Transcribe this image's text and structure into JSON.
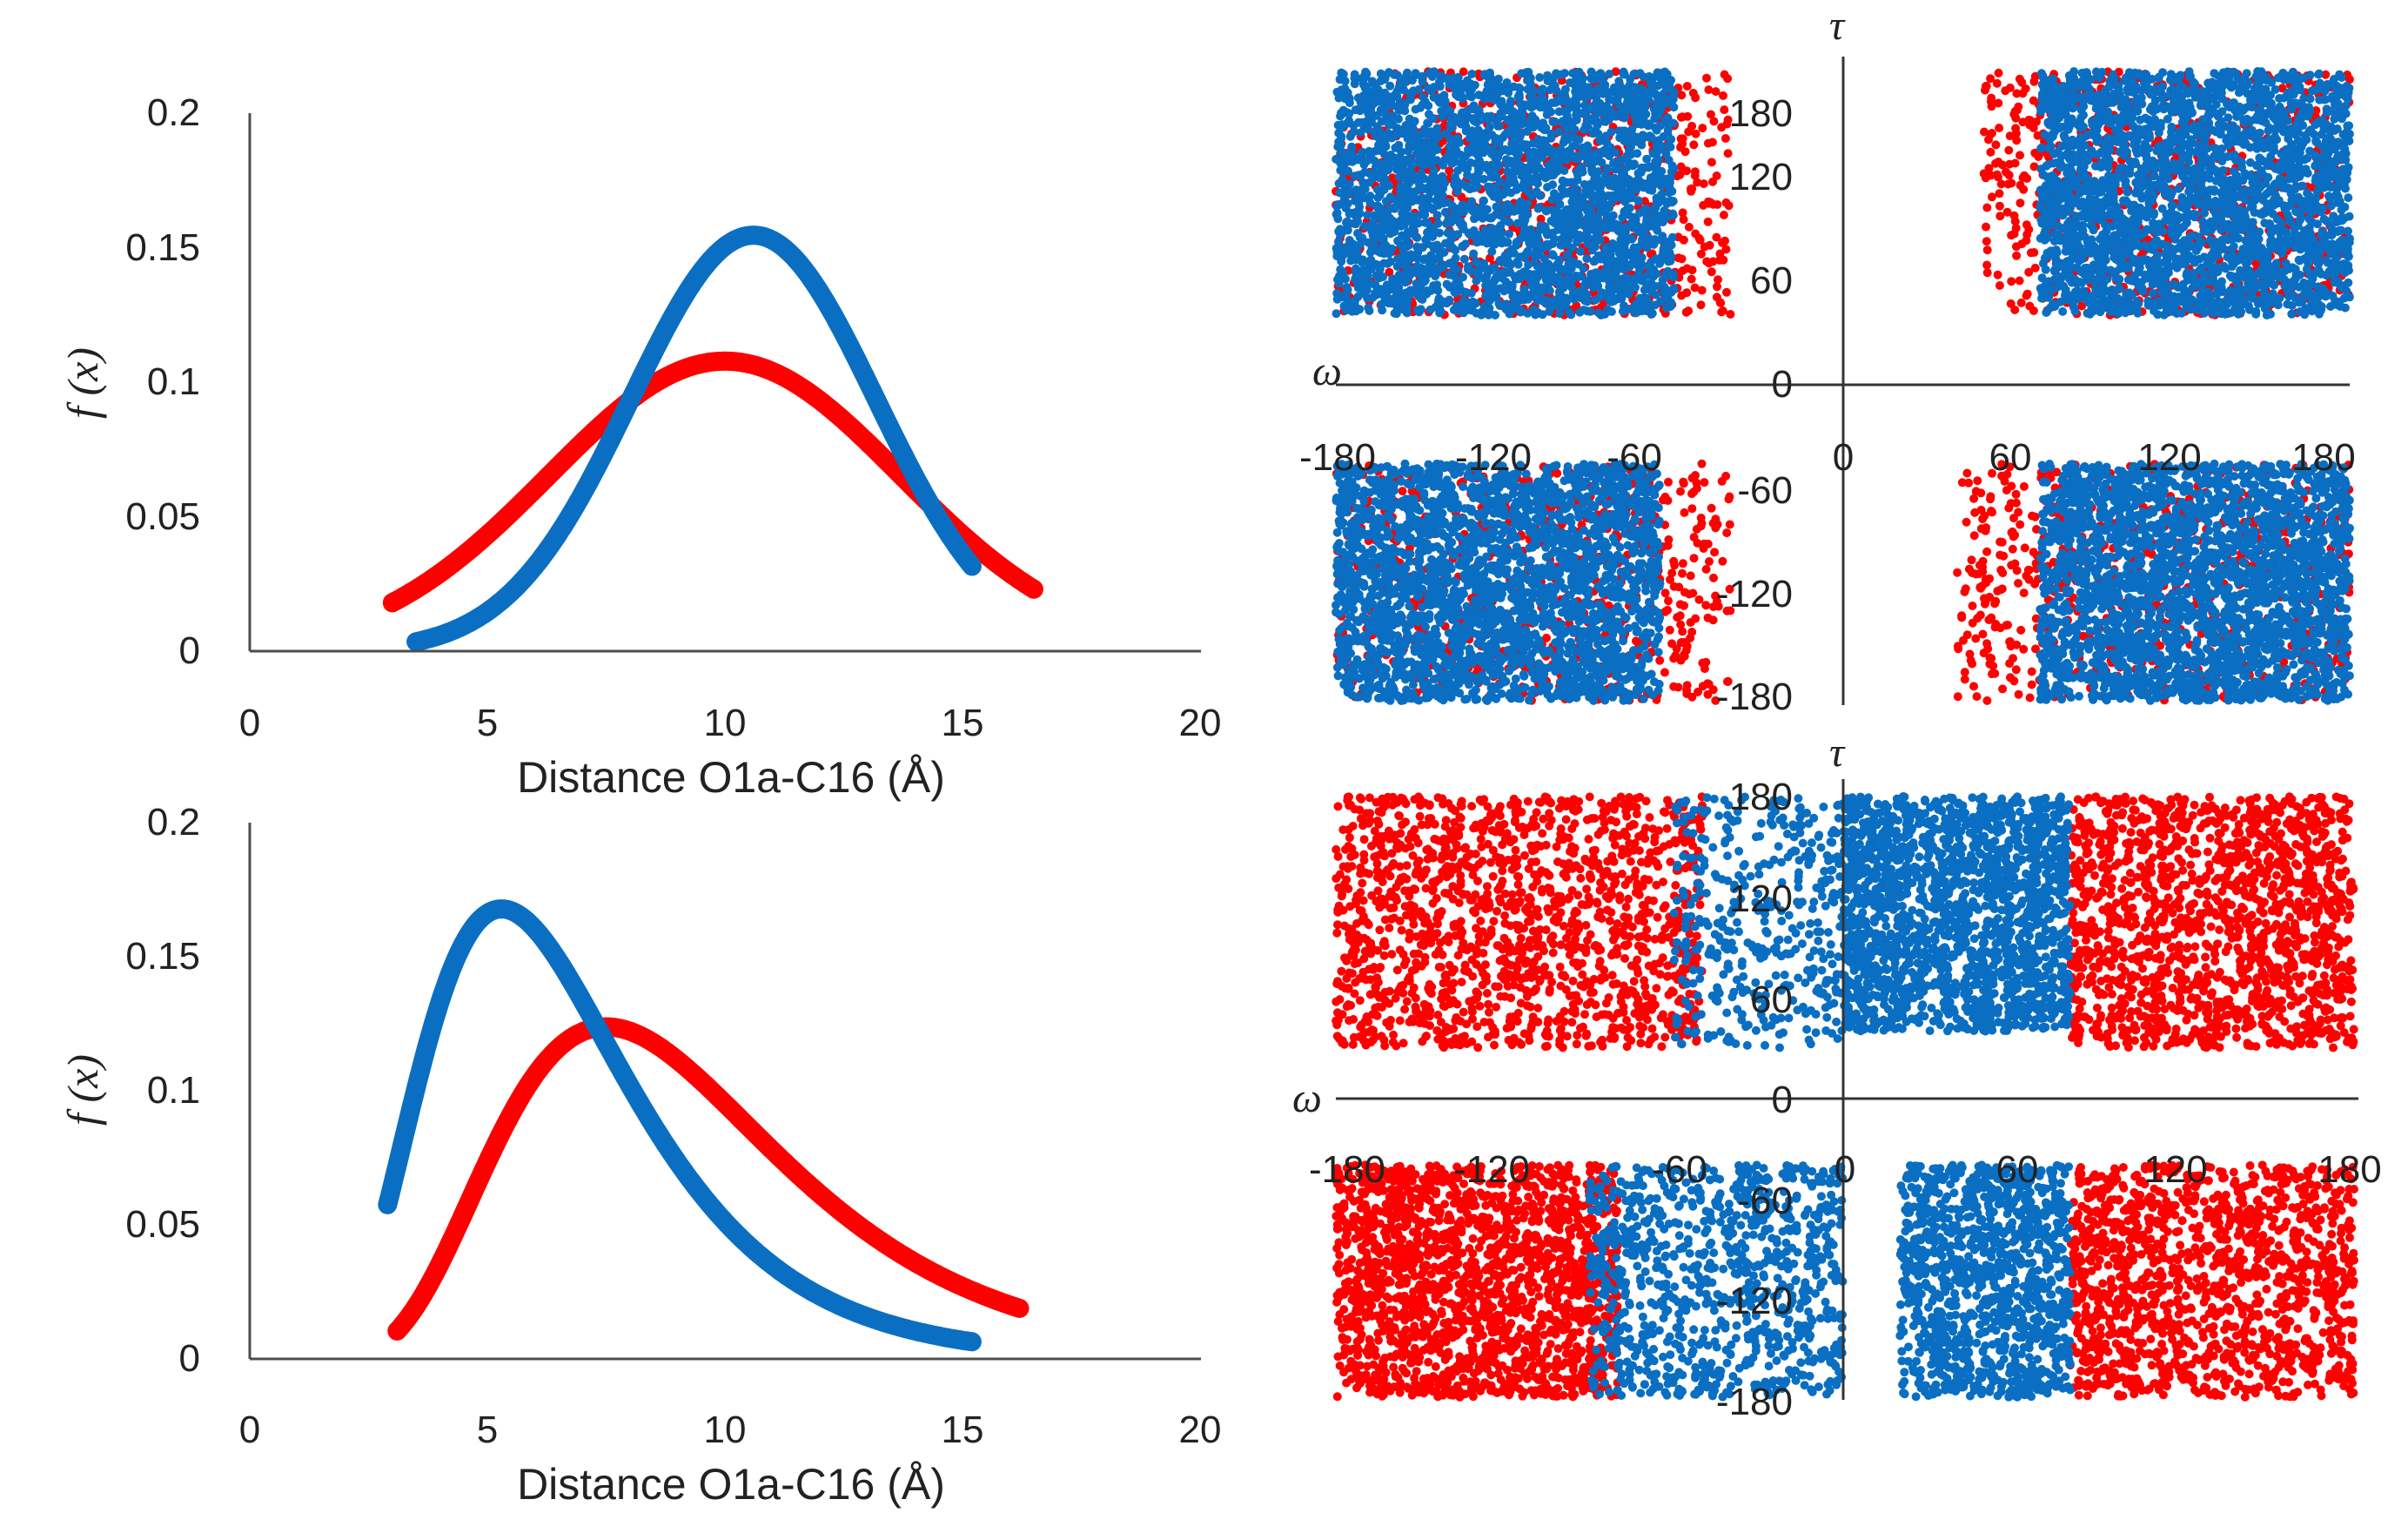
{
  "colors": {
    "blue": "#0A6FC2",
    "red": "#FF0000",
    "axis": "#4D4D4D",
    "text": "#222222"
  },
  "chart_data": [
    {
      "id": "density-top",
      "type": "line",
      "title": "",
      "xlabel": "Distance O1a-C16 (Å)",
      "ylabel": "f (x)",
      "xlim": [
        0,
        20
      ],
      "ylim": [
        0,
        0.2
      ],
      "xticks": [
        "0",
        "5",
        "10",
        "15",
        "20"
      ],
      "yticks": [
        "0",
        "0.05",
        "0.1",
        "0.15",
        "0.2"
      ],
      "series": [
        {
          "name": "red",
          "color": "#FF0000",
          "distribution": "normal",
          "mean": 10.0,
          "sd": 3.7,
          "x_range": [
            3.0,
            16.5
          ]
        },
        {
          "name": "blue",
          "color": "#0A6FC2",
          "distribution": "normal",
          "mean": 10.6,
          "sd": 2.58,
          "x_range": [
            3.5,
            15.2
          ]
        }
      ]
    },
    {
      "id": "density-bottom",
      "type": "line",
      "title": "",
      "xlabel": "Distance O1a-C16 (Å)",
      "ylabel": "f (x)",
      "xlim": [
        0,
        20
      ],
      "ylim": [
        0,
        0.2
      ],
      "xticks": [
        "0",
        "5",
        "10",
        "15",
        "20"
      ],
      "yticks": [
        "0",
        "0.05",
        "0.1",
        "0.15",
        "0.2"
      ],
      "series": [
        {
          "name": "red",
          "color": "#FF0000",
          "distribution": "lognormal",
          "peak_x": 7.5,
          "peak_y": 0.124,
          "x_range": [
            3.1,
            16.2
          ]
        },
        {
          "name": "blue",
          "color": "#0A6FC2",
          "distribution": "lognormal",
          "peak_x": 5.3,
          "peak_y": 0.168,
          "x_range": [
            2.9,
            15.2
          ]
        }
      ]
    },
    {
      "id": "scatter-top",
      "type": "scatter",
      "xlabel": "ω",
      "ylabel": "τ",
      "xlim": [
        -180,
        180
      ],
      "ylim": [
        -180,
        180
      ],
      "xticks": [
        "-180",
        "-120",
        "-60",
        "0",
        "60",
        "120",
        "180"
      ],
      "yticks": [
        "180",
        "120",
        "60",
        "0",
        "-60",
        "-120",
        "-180"
      ],
      "series": [
        {
          "name": "red",
          "color": "#FF0000",
          "regions": [
            {
              "x": [
                -180,
                -40
              ],
              "y": [
                40,
                180
              ],
              "n": 700
            },
            {
              "x": [
                50,
                180
              ],
              "y": [
                40,
                180
              ],
              "n": 700
            },
            {
              "x": [
                -180,
                -40
              ],
              "y": [
                -180,
                -45
              ],
              "n": 700
            },
            {
              "x": [
                40,
                180
              ],
              "y": [
                -180,
                -45
              ],
              "n": 700
            }
          ]
        },
        {
          "name": "blue",
          "color": "#0A6FC2",
          "regions": [
            {
              "x": [
                -180,
                -60
              ],
              "y": [
                40,
                180
              ],
              "n": 2600
            },
            {
              "x": [
                70,
                180
              ],
              "y": [
                40,
                180
              ],
              "n": 2600
            },
            {
              "x": [
                -180,
                -65
              ],
              "y": [
                -180,
                -45
              ],
              "n": 2600
            },
            {
              "x": [
                70,
                180
              ],
              "y": [
                -180,
                -45
              ],
              "n": 2600
            }
          ]
        }
      ]
    },
    {
      "id": "scatter-bottom",
      "type": "scatter",
      "xlabel": "ω",
      "ylabel": "τ",
      "xlim": [
        -180,
        180
      ],
      "ylim": [
        -180,
        180
      ],
      "xticks": [
        "-180",
        "-120",
        "-60",
        "0",
        "60",
        "120",
        "180"
      ],
      "yticks": [
        "180",
        "120",
        "60",
        "0",
        "-60",
        "-120",
        "-180"
      ],
      "series": [
        {
          "name": "red",
          "color": "#FF0000",
          "regions": [
            {
              "x": [
                -180,
                -50
              ],
              "y": [
                30,
                180
              ],
              "n": 1500
            },
            {
              "x": [
                80,
                180
              ],
              "y": [
                30,
                180
              ],
              "n": 1500
            },
            {
              "x": [
                -180,
                -80
              ],
              "y": [
                -180,
                -40
              ],
              "n": 1800
            },
            {
              "x": [
                80,
                180
              ],
              "y": [
                -180,
                -40
              ],
              "n": 1300
            }
          ]
        },
        {
          "name": "blue",
          "color": "#0A6FC2",
          "regions": [
            {
              "x": [
                -60,
                0
              ],
              "y": [
                30,
                180
              ],
              "n": 400
            },
            {
              "x": [
                0,
                80
              ],
              "y": [
                40,
                180
              ],
              "n": 1800
            },
            {
              "x": [
                -90,
                0
              ],
              "y": [
                -180,
                -40
              ],
              "n": 900
            },
            {
              "x": [
                20,
                80
              ],
              "y": [
                -180,
                -40
              ],
              "n": 1100
            }
          ]
        }
      ]
    }
  ]
}
